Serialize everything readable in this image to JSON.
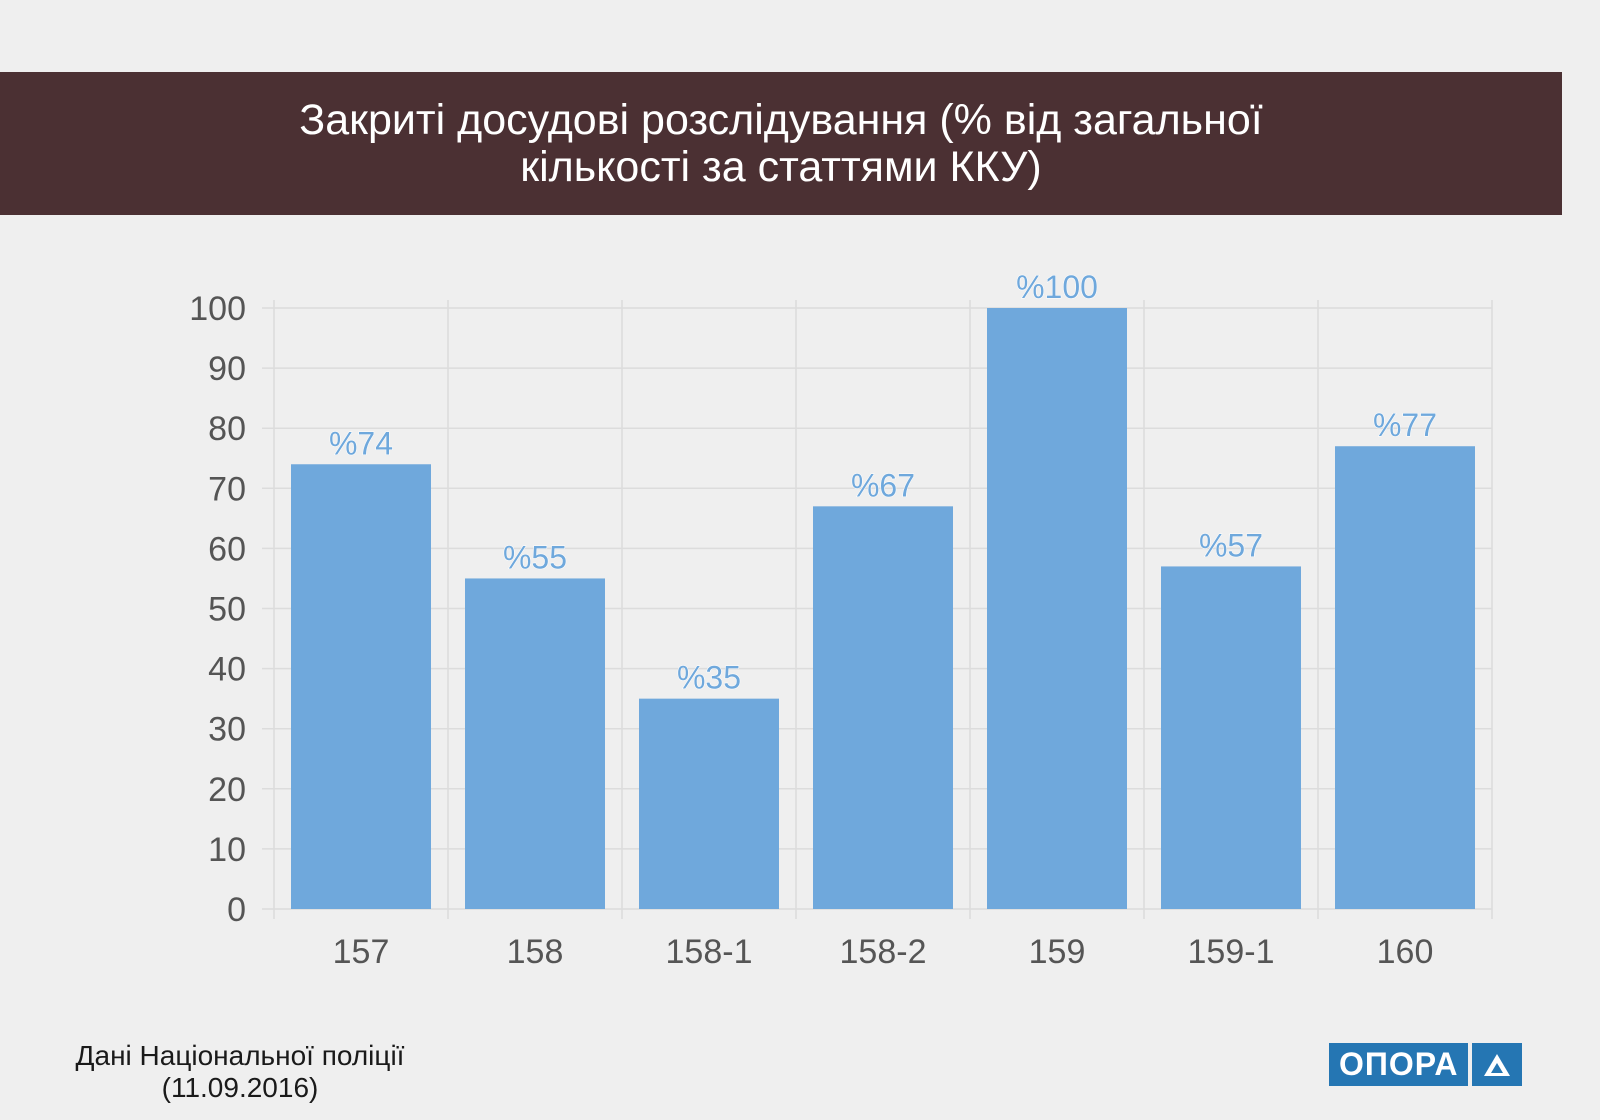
{
  "header": {
    "title_line1": "Закриті  досудові розслідування (% від загальної",
    "title_line2": "кількості за статтями  ККУ)"
  },
  "chart_data": {
    "type": "bar",
    "title": "Закриті  досудові розслідування (% від загальної кількості за статтями  ККУ)",
    "categories": [
      "157",
      "158",
      "158-1",
      "158-2",
      "159",
      "159-1",
      "160"
    ],
    "values": [
      74,
      55,
      35,
      67,
      100,
      57,
      77
    ],
    "data_labels": [
      "%74",
      "%55",
      "%35",
      "%67",
      "%100",
      "%57",
      "%77"
    ],
    "ylim": [
      0,
      100
    ],
    "yticks": [
      0,
      10,
      20,
      30,
      40,
      50,
      60,
      70,
      80,
      90,
      100
    ],
    "grid": true,
    "legend": "none",
    "bar_color": "#6fa8dc",
    "label_color": "#6fa8dc"
  },
  "footer": {
    "source_line1": "Дані Національної поліції",
    "source_line2": "(11.09.2016)",
    "logo_text": "ОПОРА",
    "logo_icon": "triangle-icon",
    "logo_color": "#2576b3"
  },
  "colors": {
    "banner": "#4b3033",
    "background": "#efefef"
  }
}
